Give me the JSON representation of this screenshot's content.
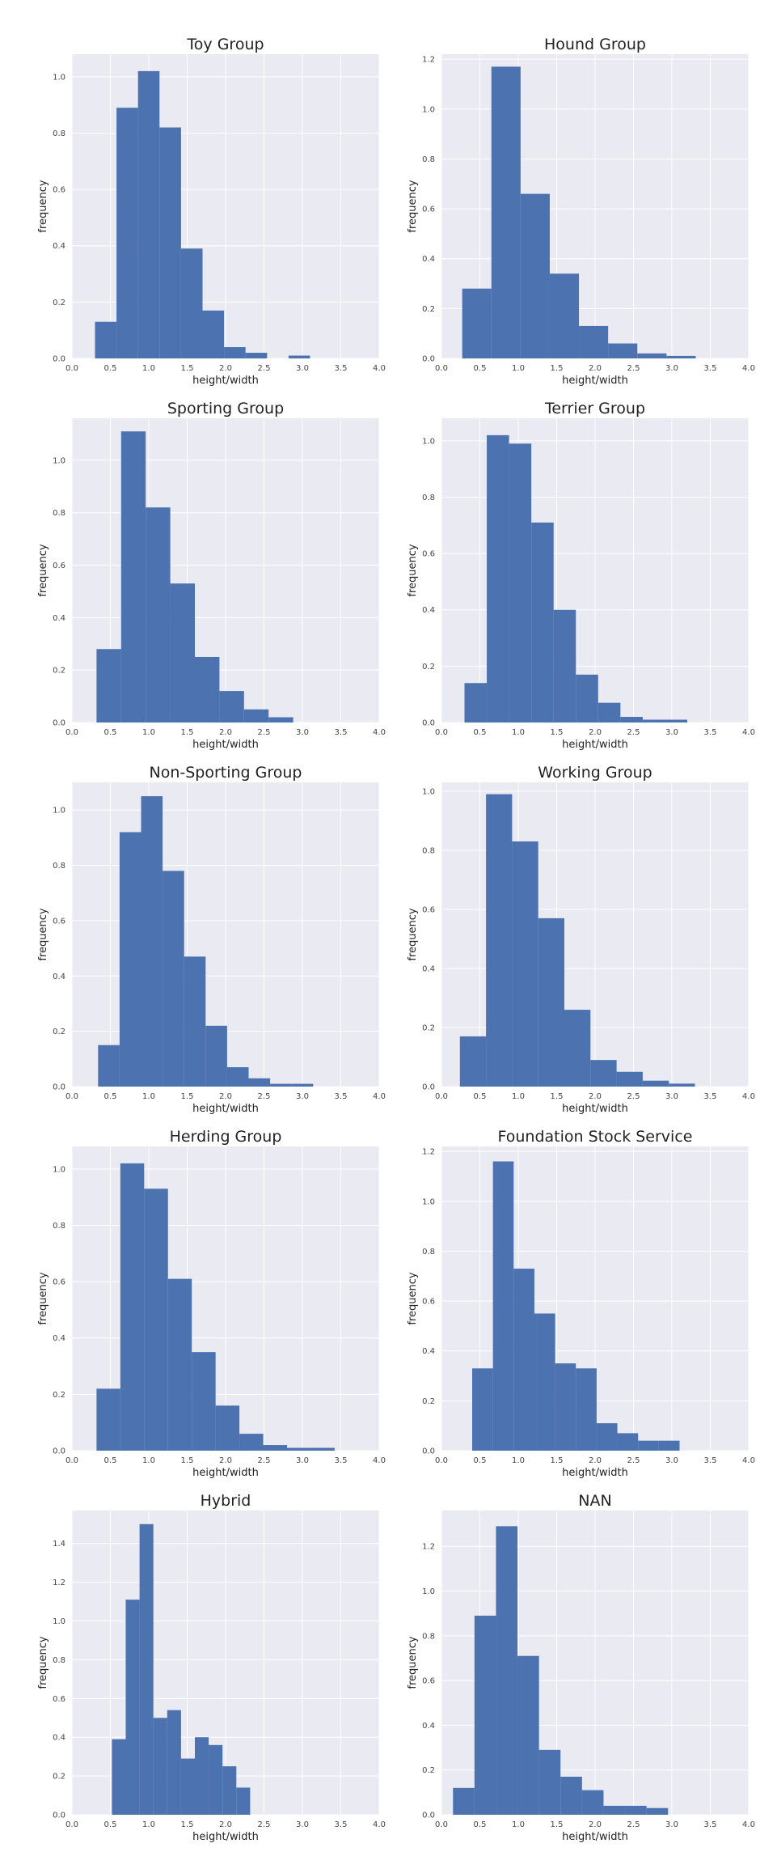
{
  "style": {
    "background": "#eaeaf2",
    "grid": "#ffffff",
    "bar": "#4c72b0",
    "text": "#222222"
  },
  "chart_data": [
    {
      "type": "bar",
      "title": "Toy Group",
      "xlabel": "height/width",
      "ylabel": "frequency",
      "xlim": [
        0,
        4
      ],
      "ylim": [
        0,
        1.08
      ],
      "xticks": [
        "0.0",
        "0.5",
        "1.0",
        "1.5",
        "2.0",
        "2.5",
        "3.0",
        "3.5",
        "4.0"
      ],
      "yticks": [
        "0.0",
        "0.2",
        "0.4",
        "0.6",
        "0.8",
        "1.0"
      ],
      "bin_edges": [
        0.3,
        0.58,
        0.86,
        1.14,
        1.42,
        1.7,
        1.98,
        2.26,
        2.54,
        2.82,
        3.1
      ],
      "values": [
        0.13,
        0.89,
        1.02,
        0.82,
        0.39,
        0.17,
        0.04,
        0.02,
        0.0,
        0.01
      ]
    },
    {
      "type": "bar",
      "title": "Hound Group",
      "xlabel": "height/width",
      "ylabel": "frequency",
      "xlim": [
        0,
        4
      ],
      "ylim": [
        0,
        1.22
      ],
      "xticks": [
        "0.0",
        "0.5",
        "1.0",
        "1.5",
        "2.0",
        "2.5",
        "3.0",
        "3.5",
        "4.0"
      ],
      "yticks": [
        "0.0",
        "0.2",
        "0.4",
        "0.6",
        "0.8",
        "1.0",
        "1.2"
      ],
      "bin_edges": [
        0.27,
        0.65,
        1.03,
        1.41,
        1.79,
        2.17,
        2.55,
        2.93,
        3.31
      ],
      "values": [
        0.28,
        1.17,
        0.66,
        0.34,
        0.13,
        0.06,
        0.02,
        0.01
      ]
    },
    {
      "type": "bar",
      "title": "Sporting Group",
      "xlabel": "height/width",
      "ylabel": "frequency",
      "xlim": [
        0,
        4
      ],
      "ylim": [
        0,
        1.16
      ],
      "xticks": [
        "0.0",
        "0.5",
        "1.0",
        "1.5",
        "2.0",
        "2.5",
        "3.0",
        "3.5",
        "4.0"
      ],
      "yticks": [
        "0.0",
        "0.2",
        "0.4",
        "0.6",
        "0.8",
        "1.0"
      ],
      "bin_edges": [
        0.32,
        0.64,
        0.96,
        1.28,
        1.6,
        1.92,
        2.24,
        2.56,
        2.88
      ],
      "values": [
        0.28,
        1.11,
        0.82,
        0.53,
        0.25,
        0.12,
        0.05,
        0.02
      ]
    },
    {
      "type": "bar",
      "title": "Terrier Group",
      "xlabel": "height/width",
      "ylabel": "frequency",
      "xlim": [
        0,
        4
      ],
      "ylim": [
        0,
        1.08
      ],
      "xticks": [
        "0.0",
        "0.5",
        "1.0",
        "1.5",
        "2.0",
        "2.5",
        "3.0",
        "3.5",
        "4.0"
      ],
      "yticks": [
        "0.0",
        "0.2",
        "0.4",
        "0.6",
        "0.8",
        "1.0"
      ],
      "bin_edges": [
        0.3,
        0.59,
        0.88,
        1.17,
        1.46,
        1.75,
        2.04,
        2.33,
        2.62,
        2.91,
        3.2
      ],
      "values": [
        0.14,
        1.02,
        0.99,
        0.71,
        0.4,
        0.17,
        0.07,
        0.02,
        0.01,
        0.01
      ]
    },
    {
      "type": "bar",
      "title": "Non-Sporting Group",
      "xlabel": "height/width",
      "ylabel": "frequency",
      "xlim": [
        0,
        4
      ],
      "ylim": [
        0,
        1.1
      ],
      "xticks": [
        "0.0",
        "0.5",
        "1.0",
        "1.5",
        "2.0",
        "2.5",
        "3.0",
        "3.5",
        "4.0"
      ],
      "yticks": [
        "0.0",
        "0.2",
        "0.4",
        "0.6",
        "0.8",
        "1.0"
      ],
      "bin_edges": [
        0.34,
        0.62,
        0.9,
        1.18,
        1.46,
        1.74,
        2.02,
        2.3,
        2.58,
        2.86,
        3.14
      ],
      "values": [
        0.15,
        0.92,
        1.05,
        0.78,
        0.47,
        0.22,
        0.07,
        0.03,
        0.01,
        0.01
      ]
    },
    {
      "type": "bar",
      "title": "Working Group",
      "xlabel": "height/width",
      "ylabel": "frequency",
      "xlim": [
        0,
        4
      ],
      "ylim": [
        0,
        1.03
      ],
      "xticks": [
        "0.0",
        "0.5",
        "1.0",
        "1.5",
        "2.0",
        "2.5",
        "3.0",
        "3.5",
        "4.0"
      ],
      "yticks": [
        "0.0",
        "0.2",
        "0.4",
        "0.6",
        "0.8",
        "1.0"
      ],
      "bin_edges": [
        0.24,
        0.58,
        0.92,
        1.26,
        1.6,
        1.94,
        2.28,
        2.62,
        2.96,
        3.3
      ],
      "values": [
        0.17,
        0.99,
        0.83,
        0.57,
        0.26,
        0.09,
        0.05,
        0.02,
        0.01
      ]
    },
    {
      "type": "bar",
      "title": "Herding Group",
      "xlabel": "height/width",
      "ylabel": "frequency",
      "xlim": [
        0,
        4
      ],
      "ylim": [
        0,
        1.08
      ],
      "xticks": [
        "0.0",
        "0.5",
        "1.0",
        "1.5",
        "2.0",
        "2.5",
        "3.0",
        "3.5",
        "4.0"
      ],
      "yticks": [
        "0.0",
        "0.2",
        "0.4",
        "0.6",
        "0.8",
        "1.0"
      ],
      "bin_edges": [
        0.32,
        0.63,
        0.94,
        1.25,
        1.56,
        1.87,
        2.18,
        2.49,
        2.8,
        3.11,
        3.42
      ],
      "values": [
        0.22,
        1.02,
        0.93,
        0.61,
        0.35,
        0.16,
        0.06,
        0.02,
        0.01,
        0.01
      ]
    },
    {
      "type": "bar",
      "title": "Foundation Stock Service",
      "xlabel": "height/width",
      "ylabel": "frequency",
      "xlim": [
        0,
        4
      ],
      "ylim": [
        0,
        1.22
      ],
      "xticks": [
        "0.0",
        "0.5",
        "1.0",
        "1.5",
        "2.0",
        "2.5",
        "3.0",
        "3.5",
        "4.0"
      ],
      "yticks": [
        "0.0",
        "0.2",
        "0.4",
        "0.6",
        "0.8",
        "1.0",
        "1.2"
      ],
      "bin_edges": [
        0.4,
        0.67,
        0.94,
        1.21,
        1.48,
        1.75,
        2.02,
        2.29,
        2.56,
        2.83,
        3.1
      ],
      "values": [
        0.33,
        1.16,
        0.73,
        0.55,
        0.35,
        0.33,
        0.11,
        0.07,
        0.04,
        0.04
      ]
    },
    {
      "type": "bar",
      "title": "Hybrid",
      "xlabel": "height/width",
      "ylabel": "frequency",
      "xlim": [
        0,
        4
      ],
      "ylim": [
        0,
        1.57
      ],
      "xticks": [
        "0.0",
        "0.5",
        "1.0",
        "1.5",
        "2.0",
        "2.5",
        "3.0",
        "3.5",
        "4.0"
      ],
      "yticks": [
        "0.0",
        "0.2",
        "0.4",
        "0.6",
        "0.8",
        "1.0",
        "1.2",
        "1.4"
      ],
      "bin_edges": [
        0.52,
        0.7,
        0.88,
        1.06,
        1.24,
        1.42,
        1.6,
        1.78,
        1.96,
        2.14,
        2.32
      ],
      "values": [
        0.39,
        1.11,
        1.5,
        0.5,
        0.54,
        0.29,
        0.4,
        0.36,
        0.25,
        0.14
      ]
    },
    {
      "type": "bar",
      "title": "NAN",
      "xlabel": "height/width",
      "ylabel": "frequency",
      "xlim": [
        0,
        4
      ],
      "ylim": [
        0,
        1.36
      ],
      "xticks": [
        "0.0",
        "0.5",
        "1.0",
        "1.5",
        "2.0",
        "2.5",
        "3.0",
        "3.5",
        "4.0"
      ],
      "yticks": [
        "0.0",
        "0.2",
        "0.4",
        "0.6",
        "0.8",
        "1.0",
        "1.2"
      ],
      "bin_edges": [
        0.15,
        0.43,
        0.71,
        0.99,
        1.27,
        1.55,
        1.83,
        2.11,
        2.39,
        2.67,
        2.95
      ],
      "values": [
        0.12,
        0.89,
        1.29,
        0.71,
        0.29,
        0.17,
        0.11,
        0.04,
        0.04,
        0.03
      ]
    }
  ]
}
